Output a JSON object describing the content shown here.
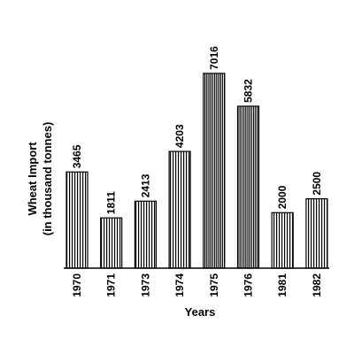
{
  "chart_data": {
    "type": "bar",
    "title": "",
    "ylabel_line1": "Wheat Import",
    "ylabel_line2": "(in thousand tonnes)",
    "xlabel": "Years",
    "categories": [
      "1970",
      "1971",
      "1973",
      "1974",
      "1975",
      "1976",
      "1981",
      "1982"
    ],
    "values": [
      3465,
      1811,
      2413,
      4203,
      7016,
      5832,
      2000,
      2500
    ],
    "ylim": [
      0,
      8000
    ],
    "grid": false,
    "bar_fill": "vertical-hatch",
    "bar_color": "#000000"
  }
}
